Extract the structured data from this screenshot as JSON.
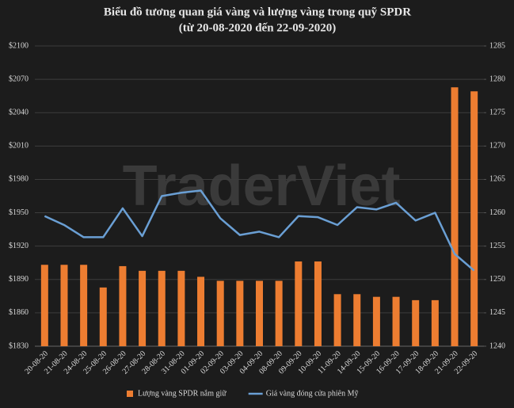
{
  "chart_data": {
    "type": "combo",
    "title": "Biểu đồ tương quan giá vàng và lượng vàng trong quỹ SPDR",
    "subtitle": "(từ 20-08-2020 đến 22-09-2020)",
    "watermark": "TraderViet",
    "categories": [
      "20-08-20",
      "21-08-20",
      "24-08-20",
      "25-08-20",
      "26-08-20",
      "27-08-20",
      "28-08-20",
      "31-08-20",
      "01-09-20",
      "02-09-20",
      "03-09-20",
      "04-09-20",
      "08-09-20",
      "09-09-20",
      "10-09-20",
      "11-09-20",
      "14-09-20",
      "15-09-20",
      "16-09-20",
      "17-09-20",
      "18-09-20",
      "21-09-20",
      "22-09-20"
    ],
    "series": [
      {
        "name": "Lượng vàng SPDR nắm giữ",
        "type": "bar",
        "axis": "y2",
        "color": "#ed7d31",
        "values": [
          1252.2,
          1252.2,
          1252.2,
          1248.8,
          1252.0,
          1251.3,
          1251.3,
          1251.3,
          1250.4,
          1249.8,
          1249.8,
          1249.8,
          1249.8,
          1252.7,
          1252.7,
          1247.8,
          1247.8,
          1247.4,
          1247.4,
          1246.9,
          1246.9,
          1278.8,
          1278.2
        ]
      },
      {
        "name": "Giá vàng đóng cửa phiên Mỹ",
        "type": "line",
        "color": "#6a9fd4",
        "values": [
          1947,
          1939,
          1928,
          1928,
          1954,
          1929,
          1965,
          1968,
          1970,
          1945,
          1930,
          1933,
          1928,
          1947,
          1946,
          1939,
          1955,
          1953,
          1959,
          1943,
          1950,
          1913,
          1898
        ]
      }
    ],
    "ylim": [
      1830,
      2100
    ],
    "yticks": [
      {
        "value": 1830,
        "label": "$1830"
      },
      {
        "value": 1860,
        "label": "$1860"
      },
      {
        "value": 1890,
        "label": "$1890"
      },
      {
        "value": 1920,
        "label": "$1920"
      },
      {
        "value": 1950,
        "label": "$1950"
      },
      {
        "value": 1980,
        "label": "$1980"
      },
      {
        "value": 2010,
        "label": "$2010"
      },
      {
        "value": 2040,
        "label": "$2040"
      },
      {
        "value": 2070,
        "label": "$2070"
      },
      {
        "value": 2100,
        "label": "$2100"
      }
    ],
    "y2lim": [
      1240,
      1285
    ],
    "y2ticks": [
      1240,
      1245,
      1250,
      1255,
      1260,
      1265,
      1270,
      1275,
      1280,
      1285
    ],
    "grid": true,
    "legend": "bottom"
  }
}
